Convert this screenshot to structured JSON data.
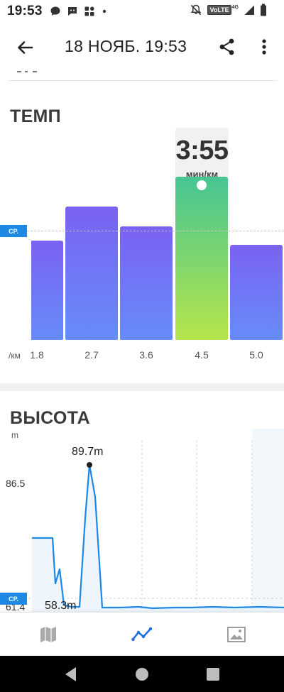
{
  "status_bar": {
    "time": "19:53",
    "notification_icons": [
      "chat-bubble-icon",
      "chat-bubble-icon",
      "apps-icon",
      "dot-icon"
    ],
    "right_icons": [
      "mute-icon",
      "volte-icon",
      "signal-icon",
      "battery-icon"
    ],
    "volte_label": "VoLTE",
    "network_label": "4G"
  },
  "app_bar": {
    "title": "18 НОЯБ. 19:53"
  },
  "pace": {
    "title": "ТЕМП",
    "unit_label": "/км",
    "avg_label": "СР.",
    "tooltip_value": "3:55",
    "tooltip_unit": "мин/км",
    "bars": [
      {
        "label": "1.8",
        "level": 0.5,
        "selected": false
      },
      {
        "label": "2.7",
        "level": 0.67,
        "selected": false
      },
      {
        "label": "3.6",
        "level": 0.57,
        "selected": false
      },
      {
        "label": "4.5",
        "level": 0.82,
        "selected": true
      },
      {
        "label": "5.0",
        "level": 0.48,
        "selected": false
      }
    ],
    "colors": {
      "bar_top": "#7a62f2",
      "bar_bottom": "#668cf8",
      "selected_top": "#45c593",
      "selected_bottom": "#b6e64a",
      "accent": "#1e88e5"
    }
  },
  "elevation": {
    "title": "ВЫСОТА",
    "unit_label": "m",
    "ticks": [
      "86.5",
      "61.4"
    ],
    "avg_label": "СР.",
    "max_label": "89.7m",
    "min_label": "58.3m",
    "colors": {
      "line": "#1e88e5",
      "fill": "#eef5fc"
    }
  },
  "bottom_nav": {
    "items": [
      {
        "name": "map-icon",
        "active": false
      },
      {
        "name": "chart-line-icon",
        "active": true
      },
      {
        "name": "photo-icon",
        "active": false
      }
    ]
  },
  "system_nav": [
    "back-triangle-icon",
    "home-circle-icon",
    "recents-square-icon"
  ]
}
